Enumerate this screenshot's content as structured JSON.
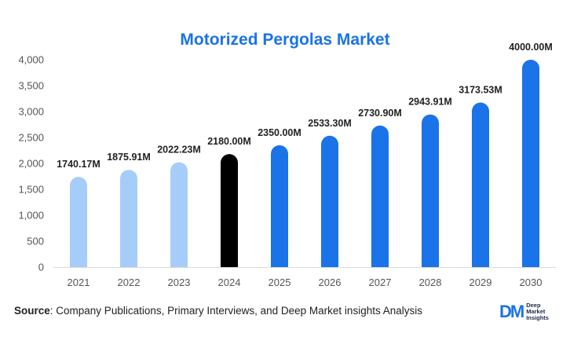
{
  "chart_data": {
    "type": "bar",
    "title": "Motorized Pergolas Market",
    "categories": [
      "2021",
      "2022",
      "2023",
      "2024",
      "2025",
      "2026",
      "2027",
      "2028",
      "2029",
      "2030"
    ],
    "values": [
      1740.17,
      1875.91,
      2022.23,
      2180.0,
      2350.0,
      2533.3,
      2730.9,
      2943.91,
      3173.53,
      4000.0
    ],
    "data_labels": [
      "1740.17M",
      "1875.91M",
      "2022.23M",
      "2180.00M",
      "2350.00M",
      "2533.30M",
      "2730.90M",
      "2943.91M",
      "3173.53M",
      "4000.00M"
    ],
    "bar_colors": [
      "#a6cdfa",
      "#a6cdfa",
      "#a6cdfa",
      "#000000",
      "#1a73e8",
      "#1a73e8",
      "#1a73e8",
      "#1a73e8",
      "#1a73e8",
      "#1a73e8"
    ],
    "ylim": [
      0,
      4000
    ],
    "yticks": [
      0,
      500,
      1000,
      1500,
      2000,
      2500,
      3000,
      3500,
      4000
    ],
    "ytick_labels": [
      "0",
      "500",
      "1,000",
      "1,500",
      "2,000",
      "2,500",
      "3,000",
      "3,500",
      "4,000"
    ],
    "grid": false,
    "title_color": "#1a73e8"
  },
  "footer": {
    "source_label": "Source",
    "source_text": ": Company Publications, Primary Interviews, and Deep Market insights Analysis"
  },
  "logo": {
    "mark": "DM",
    "line1": "Deep",
    "line2": "Market",
    "line3": "Insights"
  }
}
